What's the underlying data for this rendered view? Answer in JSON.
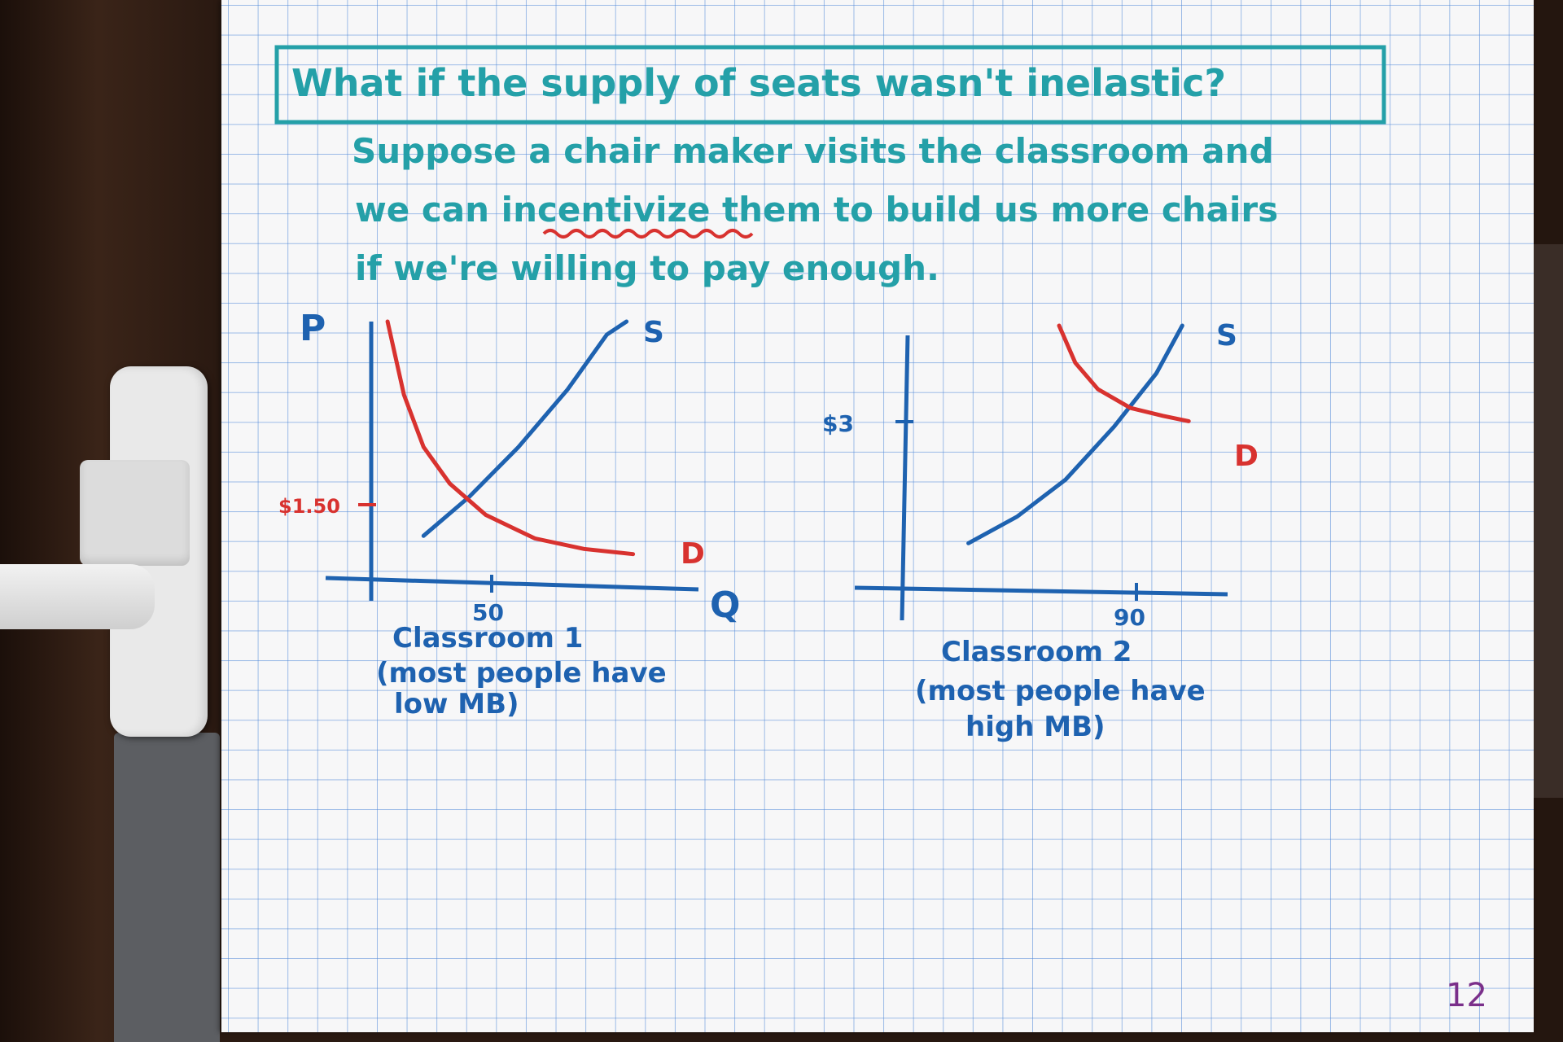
{
  "title": "What if the supply of seats wasn't inelastic?",
  "intro_lines": [
    "Suppose a chair maker visits the classroom and",
    "we can incentivize them to build us more chairs",
    "if we're willing to pay enough."
  ],
  "page_number": "12",
  "colors": {
    "teal_ink": "#24a0a8",
    "blue_ink": "#1e62b0",
    "red_ink": "#d8322f",
    "page_number_ink": "#7a2f8a",
    "grid": "#4f88d8"
  },
  "chart_data": [
    {
      "type": "line",
      "ylabel": "P",
      "xlabel": "Q",
      "price_tick": "$1.50",
      "quantity_tick": "50",
      "caption_lines": [
        "Classroom 1",
        "(most people have",
        "low MB)"
      ],
      "series": [
        {
          "name": "S",
          "color": "#1e62b0",
          "points": [
            [
              0.16,
              0.18
            ],
            [
              0.3,
              0.33
            ],
            [
              0.45,
              0.52
            ],
            [
              0.6,
              0.74
            ],
            [
              0.72,
              0.95
            ],
            [
              0.78,
              1.0
            ]
          ]
        },
        {
          "name": "D",
          "color": "#d8322f",
          "points": [
            [
              0.05,
              1.0
            ],
            [
              0.1,
              0.72
            ],
            [
              0.16,
              0.52
            ],
            [
              0.24,
              0.38
            ],
            [
              0.35,
              0.26
            ],
            [
              0.5,
              0.17
            ],
            [
              0.65,
              0.13
            ],
            [
              0.8,
              0.11
            ]
          ]
        }
      ],
      "equilibrium": {
        "q": "50",
        "p": "$1.50"
      }
    },
    {
      "type": "line",
      "price_tick": "$3",
      "quantity_tick": "90",
      "caption_lines": [
        "Classroom 2",
        "(most people have",
        "high MB)"
      ],
      "series": [
        {
          "name": "S",
          "color": "#1e62b0",
          "points": [
            [
              0.2,
              0.18
            ],
            [
              0.35,
              0.28
            ],
            [
              0.5,
              0.42
            ],
            [
              0.65,
              0.62
            ],
            [
              0.78,
              0.82
            ],
            [
              0.86,
              1.0
            ]
          ]
        },
        {
          "name": "D",
          "color": "#d8322f",
          "points": [
            [
              0.48,
              1.0
            ],
            [
              0.53,
              0.86
            ],
            [
              0.6,
              0.76
            ],
            [
              0.7,
              0.69
            ],
            [
              0.8,
              0.66
            ],
            [
              0.88,
              0.64
            ]
          ]
        }
      ],
      "equilibrium": {
        "q": "90",
        "p": "$3"
      }
    }
  ]
}
